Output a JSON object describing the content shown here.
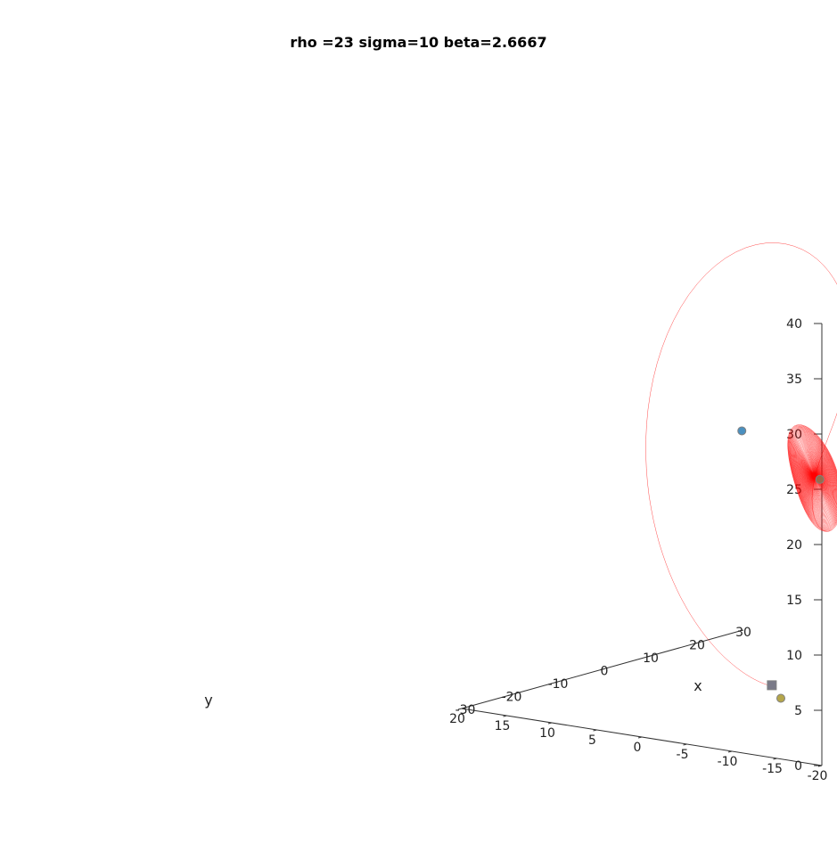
{
  "chart_data": {
    "type": "line",
    "subtype": "3d-trajectory",
    "title": "rho =23 sigma=10 beta=2.6667",
    "xlabel": "x",
    "ylabel": "y",
    "zlabel": "",
    "xlim": [
      -30,
      30
    ],
    "ylim": [
      -20,
      20
    ],
    "zlim": [
      0,
      40
    ],
    "x_ticks": [
      "-30",
      "-20",
      "-10",
      "0",
      "10",
      "20",
      "30"
    ],
    "y_ticks": [
      "-20",
      "-15",
      "-10",
      "-5",
      "0",
      "5",
      "10",
      "15",
      "20"
    ],
    "z_ticks": [
      "0",
      "5",
      "10",
      "15",
      "20",
      "25",
      "30",
      "35",
      "40"
    ],
    "grid": false,
    "series": [
      {
        "kind": "trajectory",
        "color": "#ff0000",
        "params": {
          "rho": 23,
          "sigma": 10,
          "beta": 2.6667
        },
        "initial_point": [
          0.0,
          1.0,
          1.05
        ]
      }
    ],
    "markers": [
      {
        "point": [
          8.93,
          8.93,
          22
        ],
        "shape": "circle",
        "color": "#4a90c0",
        "edge": "#808080"
      },
      {
        "point": [
          -8.93,
          -8.93,
          22
        ],
        "shape": "circle",
        "color": "#9b6b4a",
        "edge": "#808080"
      },
      {
        "point": [
          0,
          1,
          1.05
        ],
        "shape": "square",
        "color": "#7a7a88",
        "edge": "#808080"
      },
      {
        "point": [
          0,
          0,
          0
        ],
        "shape": "circle",
        "color": "#b5a64a",
        "edge": "#808080"
      }
    ]
  }
}
